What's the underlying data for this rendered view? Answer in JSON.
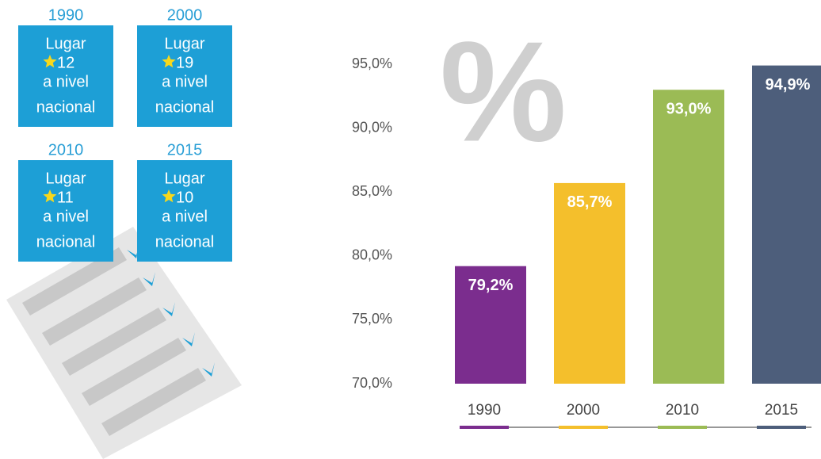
{
  "chart_data": {
    "type": "bar",
    "annotation": "%",
    "categories": [
      "1990",
      "2000",
      "2010",
      "2015"
    ],
    "values": [
      79.2,
      85.7,
      93.0,
      94.9
    ],
    "value_labels": [
      "79,2%",
      "85,7%",
      "93,0%",
      "94,9%"
    ],
    "colors": [
      "#7b2d8e",
      "#f4bf2c",
      "#9bbb55",
      "#4d5e7b"
    ],
    "ylim": [
      70,
      95
    ],
    "yticks": [
      {
        "value": 70,
        "label": "70,0%"
      },
      {
        "value": 75,
        "label": "75,0%"
      },
      {
        "value": 80,
        "label": "80,0%"
      },
      {
        "value": 85,
        "label": "85,0%"
      },
      {
        "value": 90,
        "label": "90,0%"
      },
      {
        "value": 95,
        "label": "95,0%"
      }
    ],
    "grid": false
  },
  "cards": [
    {
      "year": "1990",
      "label": "Lugar",
      "rank": 12,
      "line1": "a nivel",
      "line2": "nacional"
    },
    {
      "year": "2000",
      "label": "Lugar",
      "rank": 19,
      "line1": "a nivel",
      "line2": "nacional"
    },
    {
      "year": "2010",
      "label": "Lugar",
      "rank": 11,
      "line1": "a nivel",
      "line2": "nacional"
    },
    {
      "year": "2015",
      "label": "Lugar",
      "rank": 10,
      "line1": "a nivel",
      "line2": "nacional"
    }
  ]
}
